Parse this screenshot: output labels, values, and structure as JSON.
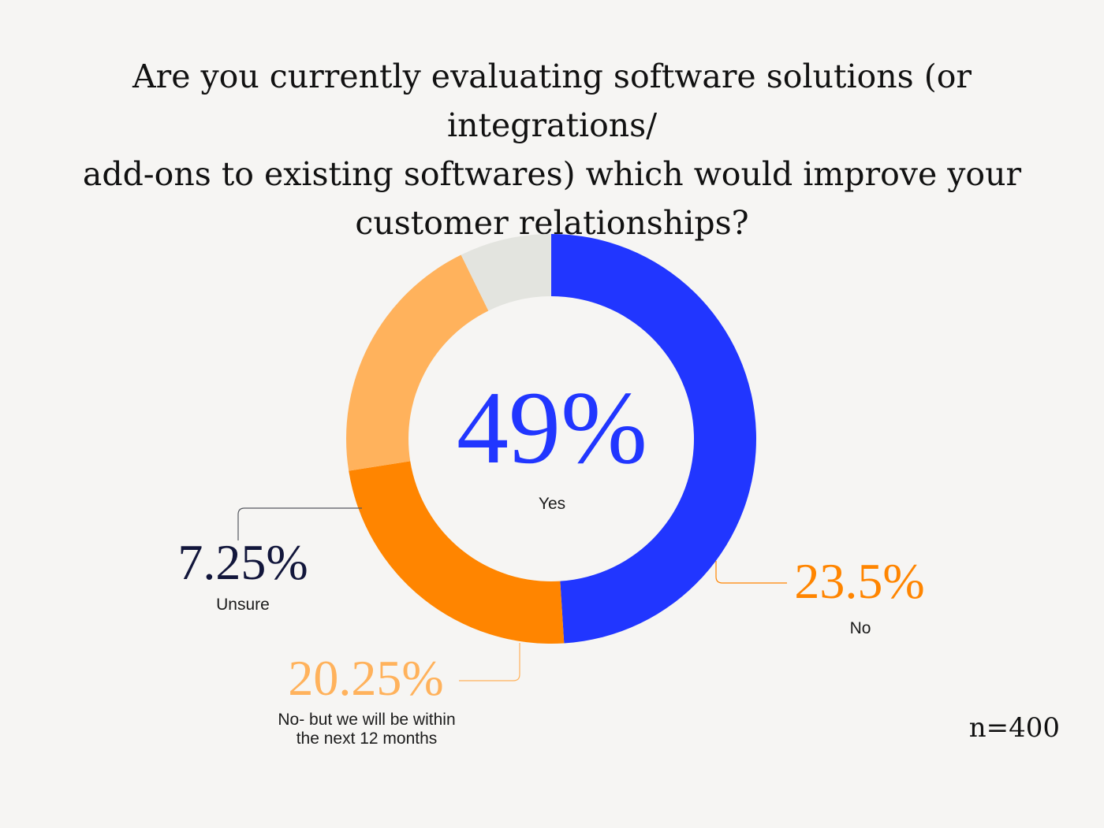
{
  "title_lines": [
    "Are you currently evaluating software solutions (or integrations/",
    "add-ons to existing softwares) which would improve your",
    "customer relationships?"
  ],
  "sample_size": "n=400",
  "chart_data": {
    "type": "pie",
    "title": "Are you currently evaluating software solutions (or integrations/ add-ons to existing softwares) which would improve your customer relationships?",
    "categories": [
      "Yes",
      "No",
      "No- but we will be within the next 12 months",
      "Unsure"
    ],
    "values": [
      49,
      23.5,
      20.25,
      7.25
    ],
    "display_values": [
      "49%",
      "23.5%",
      "20.25%",
      "7.25%"
    ],
    "colors": [
      "#2136ff",
      "#ff8500",
      "#ffb25c",
      "#e3e4df"
    ],
    "label_colors": [
      "#2136ff",
      "#ff8500",
      "#ffb25c",
      "#12163b"
    ],
    "style": "donut",
    "start_angle_deg": 270,
    "direction": "clockwise"
  }
}
